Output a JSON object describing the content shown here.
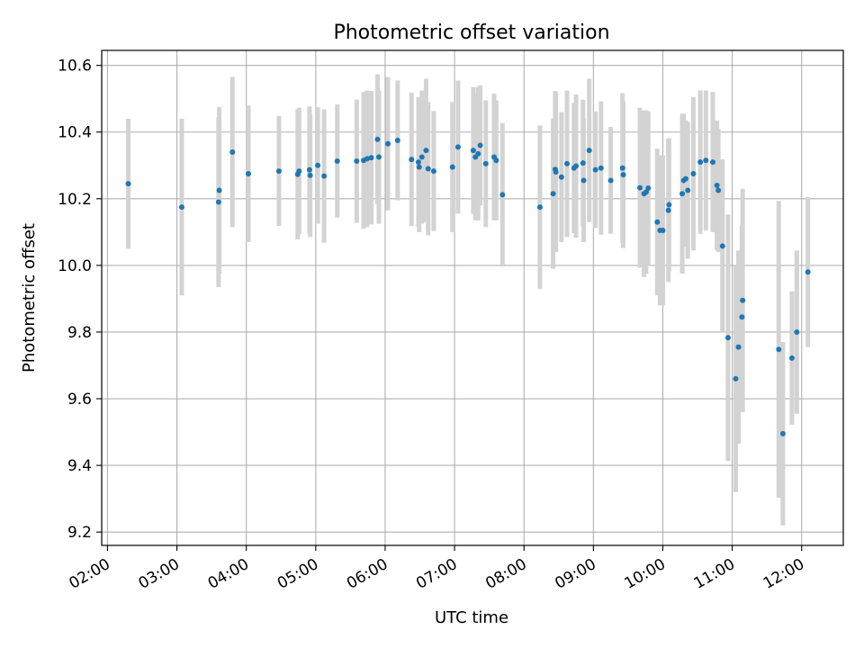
{
  "chart_data": {
    "type": "scatter",
    "title": "Photometric offset variation",
    "xlabel": "UTC time",
    "ylabel": "Photometric offset",
    "grid": true,
    "legend": "none",
    "colors": {
      "points": "#1f77b4",
      "errorbars": "#d3d3d3",
      "grid": "#b0b0b0"
    },
    "x_unit": "UTC hours",
    "xlim": [
      "01:55",
      "12:36"
    ],
    "ylim": [
      9.16,
      10.645
    ],
    "x_ticks": [
      "02:00",
      "03:00",
      "04:00",
      "05:00",
      "06:00",
      "07:00",
      "08:00",
      "09:00",
      "10:00",
      "11:00",
      "12:00"
    ],
    "y_ticks": [
      "9.2",
      "9.4",
      "9.6",
      "9.8",
      "10.0",
      "10.2",
      "10.4",
      "10.6"
    ],
    "series": [
      {
        "x": [
          2.3,
          3.07,
          3.6,
          3.61,
          3.8,
          4.03,
          4.47,
          4.74,
          4.76,
          4.91,
          4.92,
          5.03,
          5.12,
          5.31,
          5.59,
          5.69,
          5.74,
          5.8,
          5.89,
          5.91,
          6.04,
          6.18,
          6.38,
          6.48,
          6.49,
          6.53,
          6.59,
          6.62,
          6.7,
          6.97,
          7.05,
          7.27,
          7.3,
          7.34,
          7.37,
          7.45,
          7.57,
          7.6,
          7.69,
          8.23,
          8.42,
          8.45,
          8.46,
          8.54,
          8.62,
          8.72,
          8.75,
          8.85,
          8.86,
          8.94,
          9.03,
          9.11,
          9.25,
          9.42,
          9.43,
          9.67,
          9.73,
          9.76,
          9.79,
          9.92,
          9.96,
          10.0,
          10.08,
          10.09,
          10.28,
          10.3,
          10.33,
          10.36,
          10.44,
          10.54,
          10.62,
          10.72,
          10.78,
          10.8,
          10.86,
          10.94,
          11.05,
          11.09,
          11.14,
          11.15,
          11.67,
          11.73,
          11.86,
          11.93,
          12.09
        ],
        "y": [
          10.245,
          10.175,
          10.19,
          10.225,
          10.34,
          10.275,
          10.283,
          10.273,
          10.283,
          10.287,
          10.27,
          10.3,
          10.268,
          10.313,
          10.313,
          10.315,
          10.32,
          10.323,
          10.378,
          10.325,
          10.365,
          10.375,
          10.318,
          10.31,
          10.295,
          10.325,
          10.345,
          10.29,
          10.283,
          10.295,
          10.355,
          10.345,
          10.325,
          10.335,
          10.36,
          10.305,
          10.325,
          10.315,
          10.212,
          10.175,
          10.215,
          10.288,
          10.28,
          10.265,
          10.305,
          10.292,
          10.298,
          10.307,
          10.255,
          10.345,
          10.287,
          10.292,
          10.255,
          10.292,
          10.272,
          10.233,
          10.215,
          10.22,
          10.232,
          10.13,
          10.105,
          10.105,
          10.165,
          10.182,
          10.215,
          10.255,
          10.26,
          10.225,
          10.275,
          10.31,
          10.315,
          10.31,
          10.24,
          10.225,
          10.058,
          9.783,
          9.66,
          9.755,
          9.845,
          9.895,
          9.748,
          9.495,
          9.722,
          9.8,
          9.98
        ],
        "yerr": [
          0.195,
          0.265,
          0.255,
          0.25,
          0.225,
          0.205,
          0.165,
          0.195,
          0.19,
          0.19,
          0.185,
          0.175,
          0.2,
          0.17,
          0.185,
          0.205,
          0.205,
          0.2,
          0.195,
          0.2,
          0.2,
          0.18,
          0.2,
          0.195,
          0.195,
          0.2,
          0.215,
          0.2,
          0.18,
          0.195,
          0.2,
          0.19,
          0.19,
          0.2,
          0.18,
          0.19,
          0.19,
          0.18,
          0.215,
          0.245,
          0.225,
          0.235,
          0.24,
          0.195,
          0.22,
          0.195,
          0.215,
          0.19,
          0.185,
          0.215,
          0.175,
          0.2,
          0.16,
          0.225,
          0.22,
          0.24,
          0.25,
          0.245,
          0.23,
          0.22,
          0.225,
          0.225,
          0.215,
          0.2,
          0.24,
          0.2,
          0.175,
          0.205,
          0.23,
          0.215,
          0.21,
          0.21,
          0.195,
          0.185,
          0.26,
          0.37,
          0.34,
          0.29,
          0.275,
          0.335,
          0.445,
          0.275,
          0.2,
          0.245,
          0.225
        ]
      }
    ]
  }
}
